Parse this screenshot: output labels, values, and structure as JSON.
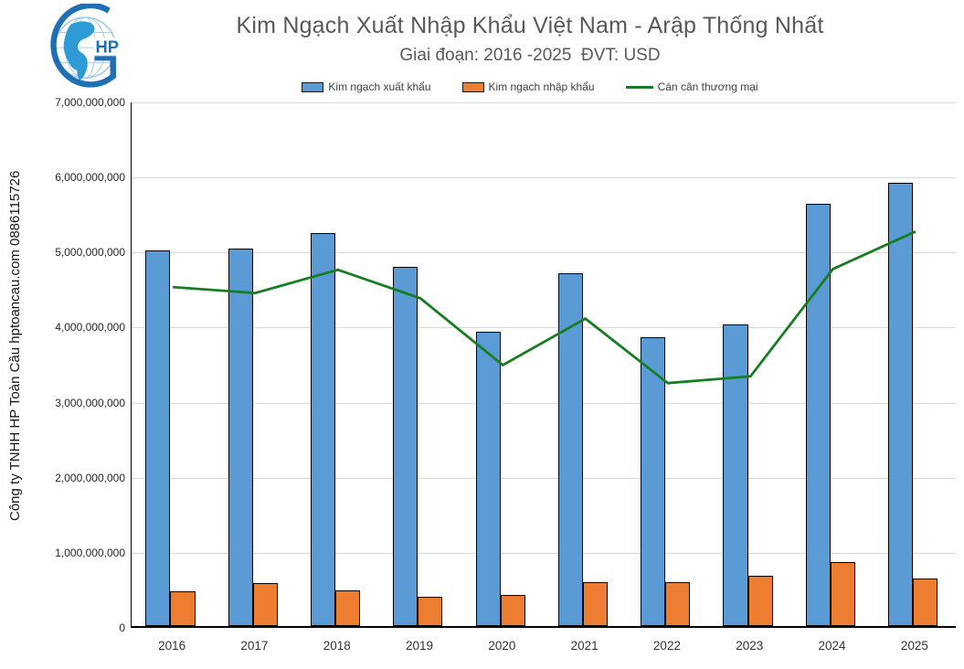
{
  "header": {
    "title": "Kim Ngạch Xuất Nhập Khẩu Việt Nam - Arập Thống Nhất",
    "subtitle": "Giai đoạn: 2016 -2025  ĐVT: USD",
    "title_color": "#595959"
  },
  "watermark": {
    "text": "Công ty TNHH HP Toàn Cầu hptoancau.com 0886115726"
  },
  "logo": {
    "company_initials": "HP",
    "brand_color": "#1F6FB4",
    "globe_color": "#2E9BD6"
  },
  "legend": [
    {
      "label": "Kim ngạch xuất khẩu",
      "marker": "swatch",
      "color": "#5B9BD5"
    },
    {
      "label": "Kim ngạch nhập khẩu",
      "marker": "swatch",
      "color": "#ED7D31"
    },
    {
      "label": "Cán cân thương mại",
      "marker": "line",
      "color": "#177D23"
    }
  ],
  "chart_data": {
    "type": "bar",
    "title": "Kim Ngạch Xuất Nhập Khẩu Việt Nam - Arập Thống Nhất",
    "subtitle": "Giai đoạn: 2016 -2025  ĐVT: USD",
    "unit": "USD",
    "categories": [
      "2016",
      "2017",
      "2018",
      "2019",
      "2020",
      "2021",
      "2022",
      "2023",
      "2024",
      "2025"
    ],
    "series": [
      {
        "name": "Kim ngạch xuất khẩu",
        "type": "bar",
        "color": "#5B9BD5",
        "values": [
          5000000000,
          5030000000,
          5240000000,
          4780000000,
          3920000000,
          4700000000,
          3850000000,
          4020000000,
          5630000000,
          5910000000
        ]
      },
      {
        "name": "Kim ngạch nhập khẩu",
        "type": "bar",
        "color": "#ED7D31",
        "values": [
          460000000,
          570000000,
          470000000,
          390000000,
          420000000,
          580000000,
          590000000,
          670000000,
          850000000,
          630000000
        ]
      },
      {
        "name": "Cán cân thương mại",
        "type": "line",
        "color": "#177D23",
        "values": [
          4540000000,
          4460000000,
          4770000000,
          4390000000,
          3500000000,
          4120000000,
          3260000000,
          3350000000,
          4780000000,
          5280000000
        ]
      }
    ],
    "ylim": [
      0,
      7000000000
    ],
    "ytick_step": 1000000000,
    "ytick_labels": [
      "7,000,000,000",
      "6,000,000,000",
      "5,000,000,000",
      "4,000,000,000",
      "3,000,000,000",
      "2,000,000,000",
      "1,000,000,000",
      "0"
    ],
    "grid": true,
    "gridline_color": "#d9d9d9",
    "legend_position": "top"
  }
}
